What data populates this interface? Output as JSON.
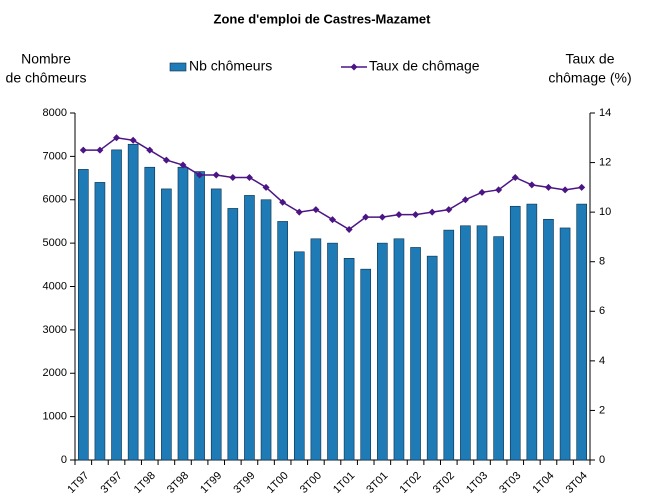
{
  "chart_data": {
    "type": "bar-line",
    "title": "Zone d'emploi de Castres-Mazamet",
    "ylabel": [
      "Nombre",
      "de chômeurs"
    ],
    "y2label": [
      "Taux de",
      "chômage (%)"
    ],
    "categories": [
      "1T97",
      null,
      "3T97",
      null,
      "1T98",
      null,
      "3T98",
      null,
      "1T99",
      null,
      "3T99",
      null,
      "1T00",
      null,
      "3T00",
      null,
      "1T01",
      null,
      "3T01",
      null,
      "1T02",
      null,
      "3T02",
      null,
      "1T03",
      null,
      "3T03",
      null,
      "1T04",
      null,
      "3T04"
    ],
    "series": [
      {
        "name": "Nb chômeurs",
        "color": "#1f7bb6",
        "kind": "bar",
        "values": [
          6700,
          6400,
          7150,
          7280,
          6750,
          6250,
          6750,
          6650,
          6250,
          5800,
          6100,
          6000,
          5500,
          4800,
          5100,
          5000,
          4650,
          4400,
          5000,
          5100,
          4900,
          4700,
          5300,
          5400,
          5400,
          5150,
          5850,
          5900,
          5550,
          5350,
          5900
        ]
      },
      {
        "name": "Taux de chômage",
        "color": "#4b1585",
        "kind": "line",
        "axis": "y2",
        "values": [
          12.5,
          12.5,
          13.0,
          12.9,
          12.5,
          12.1,
          11.9,
          11.5,
          11.5,
          11.4,
          11.4,
          11.0,
          10.4,
          10.0,
          10.1,
          9.7,
          9.3,
          9.8,
          9.8,
          9.9,
          9.9,
          10.0,
          10.1,
          10.5,
          10.8,
          10.9,
          11.4,
          11.1,
          11.0,
          10.9,
          11.0
        ]
      }
    ],
    "ylim": [
      0,
      8000
    ],
    "yticks": [
      0,
      1000,
      2000,
      3000,
      4000,
      5000,
      6000,
      7000,
      8000
    ],
    "y2lim": [
      0,
      14
    ],
    "y2ticks": [
      0,
      2,
      4,
      6,
      8,
      10,
      12,
      14
    ],
    "grid": false
  }
}
